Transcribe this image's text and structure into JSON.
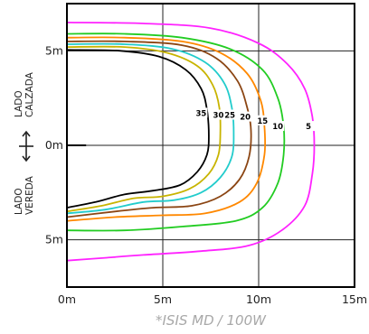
{
  "chart_data": {
    "type": "line",
    "caption_prefix": "*ISIS MD",
    "caption_suffix": "/ 100W",
    "xlim": [
      0,
      15
    ],
    "ylim": [
      -7.5,
      7.5
    ],
    "x_ticks": [
      {
        "value": 0,
        "label": "0m"
      },
      {
        "value": 5,
        "label": "5m"
      },
      {
        "value": 10,
        "label": "10m"
      },
      {
        "value": 15,
        "label": "15m"
      }
    ],
    "y_ticks": [
      {
        "value": 5,
        "label": "5m"
      },
      {
        "value": 0,
        "label": "0m"
      },
      {
        "value": -5,
        "label": "5m"
      }
    ],
    "side_labels": {
      "top": [
        "LADO",
        "CALZADA"
      ],
      "bottom": [
        "LADO",
        "VEREDA"
      ]
    },
    "grid": true,
    "series": [
      {
        "name": "5",
        "color": "#ff22ff",
        "label_at": [
          12.6,
          1.0
        ],
        "points": [
          [
            0,
            6.5
          ],
          [
            4,
            6.45
          ],
          [
            7.5,
            6.2
          ],
          [
            10,
            5.4
          ],
          [
            11.5,
            4.3
          ],
          [
            12.4,
            3.0
          ],
          [
            12.8,
            1.5
          ],
          [
            12.9,
            0
          ],
          [
            12.8,
            -1.5
          ],
          [
            12.4,
            -3.2
          ],
          [
            11.2,
            -4.5
          ],
          [
            9.5,
            -5.3
          ],
          [
            7,
            -5.6
          ],
          [
            4,
            -5.8
          ],
          [
            2,
            -5.95
          ],
          [
            0,
            -6.1
          ]
        ]
      },
      {
        "name": "10",
        "color": "#22cc22",
        "label_at": [
          11.0,
          1.0
        ],
        "points": [
          [
            0,
            5.9
          ],
          [
            3,
            5.9
          ],
          [
            6,
            5.7
          ],
          [
            8.5,
            5.1
          ],
          [
            10.2,
            4.0
          ],
          [
            11.0,
            2.5
          ],
          [
            11.3,
            1.0
          ],
          [
            11.3,
            -0.5
          ],
          [
            11.0,
            -2.0
          ],
          [
            10.2,
            -3.3
          ],
          [
            8.8,
            -4.0
          ],
          [
            6,
            -4.3
          ],
          [
            3,
            -4.5
          ],
          [
            0,
            -4.5
          ]
        ]
      },
      {
        "name": "15",
        "color": "#ff8800",
        "label_at": [
          10.2,
          1.3
        ],
        "points": [
          [
            0,
            5.7
          ],
          [
            3,
            5.7
          ],
          [
            6,
            5.5
          ],
          [
            8,
            4.9
          ],
          [
            9.4,
            3.8
          ],
          [
            10.1,
            2.4
          ],
          [
            10.3,
            1.0
          ],
          [
            10.3,
            -0.5
          ],
          [
            9.9,
            -2.0
          ],
          [
            9.0,
            -3.0
          ],
          [
            7.2,
            -3.6
          ],
          [
            5,
            -3.7
          ],
          [
            2.5,
            -3.8
          ],
          [
            0,
            -4.0
          ]
        ]
      },
      {
        "name": "20",
        "color": "#8b4513",
        "label_at": [
          9.3,
          1.5
        ],
        "points": [
          [
            0,
            5.5
          ],
          [
            3,
            5.5
          ],
          [
            6,
            5.3
          ],
          [
            7.8,
            4.6
          ],
          [
            8.9,
            3.4
          ],
          [
            9.4,
            2.0
          ],
          [
            9.6,
            0.8
          ],
          [
            9.5,
            -0.6
          ],
          [
            9.0,
            -1.8
          ],
          [
            8.0,
            -2.7
          ],
          [
            6.5,
            -3.2
          ],
          [
            4.5,
            -3.3
          ],
          [
            2.5,
            -3.5
          ],
          [
            0,
            -3.8
          ]
        ]
      },
      {
        "name": "25",
        "color": "#22cccc",
        "label_at": [
          8.5,
          1.6
        ],
        "points": [
          [
            0,
            5.35
          ],
          [
            3,
            5.35
          ],
          [
            5.5,
            5.1
          ],
          [
            7.2,
            4.4
          ],
          [
            8.2,
            3.3
          ],
          [
            8.6,
            2.0
          ],
          [
            8.7,
            0.7
          ],
          [
            8.6,
            -0.6
          ],
          [
            8.0,
            -1.7
          ],
          [
            7.0,
            -2.5
          ],
          [
            5.6,
            -2.9
          ],
          [
            4,
            -3.0
          ],
          [
            2,
            -3.4
          ],
          [
            0,
            -3.6
          ]
        ]
      },
      {
        "name": "30",
        "color": "#c8b400",
        "label_at": [
          7.9,
          1.6
        ],
        "points": [
          [
            0,
            5.2
          ],
          [
            3,
            5.2
          ],
          [
            5.2,
            4.9
          ],
          [
            6.8,
            4.2
          ],
          [
            7.6,
            3.2
          ],
          [
            7.95,
            2.0
          ],
          [
            8.0,
            0.6
          ],
          [
            7.9,
            -0.5
          ],
          [
            7.4,
            -1.5
          ],
          [
            6.4,
            -2.3
          ],
          [
            5.0,
            -2.7
          ],
          [
            3.5,
            -2.8
          ],
          [
            1.8,
            -3.2
          ],
          [
            0,
            -3.5
          ]
        ]
      },
      {
        "name": "35",
        "color": "#000000",
        "label_at": [
          7.0,
          1.7
        ],
        "points": [
          [
            0,
            5.05
          ],
          [
            2.8,
            5.0
          ],
          [
            4.8,
            4.7
          ],
          [
            6.2,
            4.0
          ],
          [
            7.0,
            3.0
          ],
          [
            7.3,
            1.9
          ],
          [
            7.4,
            0.5
          ],
          [
            7.3,
            -0.5
          ],
          [
            6.8,
            -1.4
          ],
          [
            5.9,
            -2.1
          ],
          [
            4.5,
            -2.4
          ],
          [
            3.0,
            -2.6
          ],
          [
            1.5,
            -3.0
          ],
          [
            0,
            -3.3
          ]
        ]
      }
    ]
  }
}
